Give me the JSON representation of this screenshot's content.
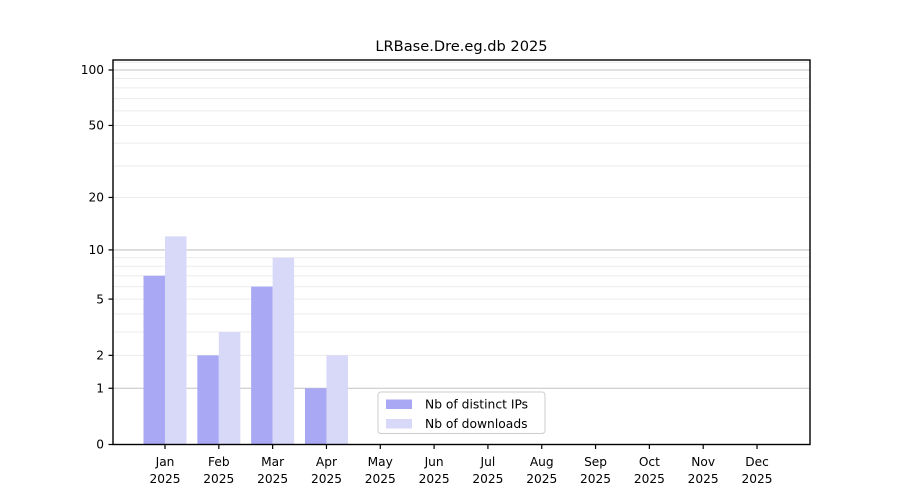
{
  "chart_data": {
    "type": "bar",
    "title": "LRBase.Dre.eg.db 2025",
    "year_label": "2025",
    "categories": [
      "Jan",
      "Feb",
      "Mar",
      "Apr",
      "May",
      "Jun",
      "Jul",
      "Aug",
      "Sep",
      "Oct",
      "Nov",
      "Dec"
    ],
    "series": [
      {
        "name": "Nb of distinct IPs",
        "color": "#a8a8f5",
        "values": [
          7,
          2,
          6,
          1,
          0,
          0,
          0,
          0,
          0,
          0,
          0,
          0
        ]
      },
      {
        "name": "Nb of downloads",
        "color": "#d8d8f8",
        "values": [
          12,
          3,
          9,
          2,
          0,
          0,
          0,
          0,
          0,
          0,
          0,
          0
        ]
      }
    ],
    "xlabel": "",
    "ylabel": "",
    "yscale": "log1p",
    "yticks": [
      0,
      1,
      2,
      5,
      10,
      20,
      50,
      100
    ],
    "ylim": [
      0,
      113
    ],
    "grid": "horizontal",
    "legend_position": "lower center",
    "colors": {
      "major_grid": "#c3c3c3",
      "minor_grid": "#ececec",
      "spine": "#000000",
      "legend_border": "#cccccc",
      "background": "#ffffff"
    }
  }
}
